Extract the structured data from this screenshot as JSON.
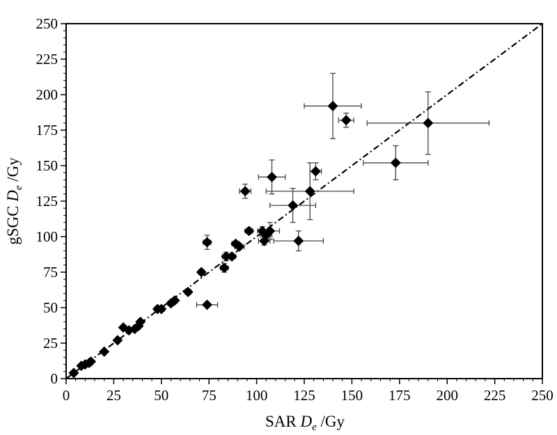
{
  "chart_data": {
    "type": "scatter",
    "xlabel": {
      "prefix": "SAR ",
      "italic": "D",
      "sub": "e",
      "suffix": " /Gy"
    },
    "ylabel": {
      "prefix": "gSGC ",
      "italic": "D",
      "sub": "e",
      "suffix": " /Gy"
    },
    "xlim": [
      0,
      250
    ],
    "ylim": [
      0,
      250
    ],
    "xticks": [
      "0",
      "25",
      "50",
      "75",
      "100",
      "125",
      "150",
      "175",
      "200",
      "225",
      "250"
    ],
    "yticks": [
      "0",
      "25",
      "50",
      "75",
      "100",
      "125",
      "150",
      "175",
      "200",
      "225",
      "250"
    ],
    "grid": false,
    "legend": "none",
    "reference_line": {
      "style": "dash-dot",
      "from": [
        0,
        0
      ],
      "to": [
        250,
        250
      ]
    },
    "marker": "diamond",
    "marker_color": "#000000",
    "series": [
      {
        "points": [
          {
            "x": 4,
            "y": 4,
            "xerr": 0.5,
            "yerr": 0.5
          },
          {
            "x": 8,
            "y": 9,
            "xerr": 0.5,
            "yerr": 0.5
          },
          {
            "x": 10,
            "y": 10,
            "xerr": 0.5,
            "yerr": 0.5
          },
          {
            "x": 12,
            "y": 11,
            "xerr": 1,
            "yerr": 1
          },
          {
            "x": 13,
            "y": 12,
            "xerr": 1,
            "yerr": 1
          },
          {
            "x": 20,
            "y": 19,
            "xerr": 1,
            "yerr": 1
          },
          {
            "x": 27,
            "y": 27,
            "xerr": 1,
            "yerr": 1
          },
          {
            "x": 30,
            "y": 36,
            "xerr": 1,
            "yerr": 1
          },
          {
            "x": 33,
            "y": 34,
            "xerr": 1,
            "yerr": 1
          },
          {
            "x": 36,
            "y": 35,
            "xerr": 1,
            "yerr": 1
          },
          {
            "x": 38,
            "y": 37,
            "xerr": 1,
            "yerr": 1
          },
          {
            "x": 39,
            "y": 40,
            "xerr": 1,
            "yerr": 1
          },
          {
            "x": 48,
            "y": 49,
            "xerr": 1.5,
            "yerr": 1.5
          },
          {
            "x": 50,
            "y": 49,
            "xerr": 1.5,
            "yerr": 1.5
          },
          {
            "x": 55,
            "y": 53,
            "xerr": 1.5,
            "yerr": 1.5
          },
          {
            "x": 57,
            "y": 55,
            "xerr": 1.5,
            "yerr": 1.5
          },
          {
            "x": 64,
            "y": 61,
            "xerr": 1.5,
            "yerr": 1.5
          },
          {
            "x": 71,
            "y": 75,
            "xerr": 1.5,
            "yerr": 1.5
          },
          {
            "x": 74,
            "y": 52,
            "xerr": 5.5,
            "yerr": 1.5
          },
          {
            "x": 74,
            "y": 96,
            "xerr": 2,
            "yerr": 5
          },
          {
            "x": 83,
            "y": 78,
            "xerr": 2,
            "yerr": 3
          },
          {
            "x": 84,
            "y": 86,
            "xerr": 2,
            "yerr": 3
          },
          {
            "x": 87,
            "y": 86,
            "xerr": 2,
            "yerr": 2
          },
          {
            "x": 89,
            "y": 95,
            "xerr": 2,
            "yerr": 2
          },
          {
            "x": 91,
            "y": 93,
            "xerr": 2.5,
            "yerr": 2
          },
          {
            "x": 94,
            "y": 132,
            "xerr": 3,
            "yerr": 5
          },
          {
            "x": 96,
            "y": 104,
            "xerr": 2,
            "yerr": 2
          },
          {
            "x": 103,
            "y": 104,
            "xerr": 2.5,
            "yerr": 3
          },
          {
            "x": 104,
            "y": 97,
            "xerr": 3,
            "yerr": 3
          },
          {
            "x": 105,
            "y": 101,
            "xerr": 3,
            "yerr": 3
          },
          {
            "x": 107,
            "y": 104,
            "xerr": 5,
            "yerr": 6
          },
          {
            "x": 108,
            "y": 142,
            "xerr": 7,
            "yerr": 12
          },
          {
            "x": 119,
            "y": 122,
            "xerr": 12,
            "yerr": 12
          },
          {
            "x": 122,
            "y": 97,
            "xerr": 13,
            "yerr": 7
          },
          {
            "x": 128,
            "y": 132,
            "xerr": 23,
            "yerr": 20
          },
          {
            "x": 131,
            "y": 146,
            "xerr": 3,
            "yerr": 6
          },
          {
            "x": 140,
            "y": 192,
            "xerr": 15,
            "yerr": 23
          },
          {
            "x": 147,
            "y": 182,
            "xerr": 4,
            "yerr": 5
          },
          {
            "x": 173,
            "y": 152,
            "xerr": 17,
            "yerr": 12
          },
          {
            "x": 190,
            "y": 180,
            "xerr": 32,
            "yerr": 22
          }
        ]
      }
    ]
  }
}
